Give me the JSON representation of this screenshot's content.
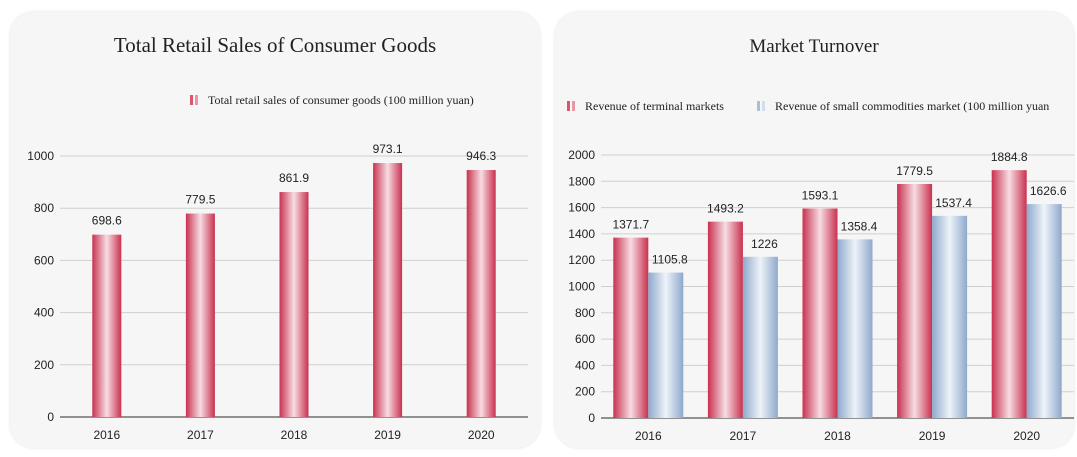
{
  "chart_data": [
    {
      "type": "bar",
      "title": "Total Retail Sales of Consumer Goods",
      "categories": [
        "2016",
        "2017",
        "2018",
        "2019",
        "2020"
      ],
      "series": [
        {
          "name": "Total retail sales of consumer goods (100 million yuan)",
          "values": [
            698.6,
            779.5,
            861.9,
            973.1,
            946.3
          ],
          "labels": [
            "698.6",
            "779.5",
            "861.9",
            "973.1",
            "946.3"
          ],
          "color": "#d9566e"
        }
      ],
      "ylim": [
        0,
        1000
      ],
      "yticks": [
        0,
        200,
        400,
        600,
        800,
        1000
      ],
      "xlabel": "",
      "ylabel": "",
      "grid": true,
      "legend": "top-right"
    },
    {
      "type": "bar",
      "title": "Market Turnover",
      "categories": [
        "2016",
        "2017",
        "2018",
        "2019",
        "2020"
      ],
      "series": [
        {
          "name": "Revenue of terminal markets",
          "values": [
            1371.7,
            1493.2,
            1593.1,
            1779.5,
            1884.8
          ],
          "labels": [
            "1371.7",
            "1493.2",
            "1593.1",
            "1779.5",
            "1884.8"
          ],
          "color": "#d9566e"
        },
        {
          "name": "Revenue of small commodities market (100 million yuan",
          "values": [
            1105.8,
            1226,
            1358.4,
            1537.4,
            1626.6
          ],
          "labels": [
            "1105.8",
            "1226",
            "1358.4",
            "1537.4",
            "1626.6"
          ],
          "color": "#a9bed8"
        }
      ],
      "ylim": [
        0,
        2000
      ],
      "yticks": [
        0,
        200,
        400,
        600,
        800,
        1000,
        1200,
        1400,
        1600,
        1800,
        2000
      ],
      "xlabel": "",
      "ylabel": "",
      "grid": true,
      "legend": "top"
    }
  ]
}
